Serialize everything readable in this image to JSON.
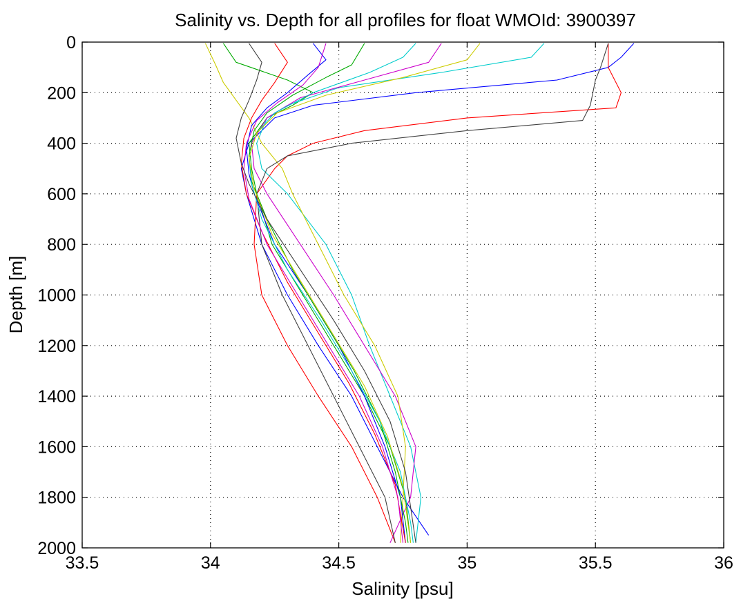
{
  "chart_data": {
    "type": "line",
    "title": "Salinity vs. Depth for all profiles for float WMOId: 3900397",
    "xlabel": "Salinity [psu]",
    "ylabel": "Depth [m]",
    "xlim": [
      33.5,
      36
    ],
    "ylim": [
      0,
      2000
    ],
    "y_reversed": true,
    "grid": true,
    "x_ticks": [
      33.5,
      34,
      34.5,
      35,
      35.5,
      36
    ],
    "x_tick_labels": [
      "33.5",
      "34",
      "34.5",
      "35",
      "35.5",
      "36"
    ],
    "y_ticks": [
      0,
      200,
      400,
      600,
      800,
      1000,
      1200,
      1400,
      1600,
      1800,
      2000
    ],
    "y_tick_labels": [
      "0",
      "200",
      "400",
      "600",
      "800",
      "1000",
      "1200",
      "1400",
      "1600",
      "1800",
      "2000"
    ],
    "series_colors": [
      "#0000ff",
      "#00aa00",
      "#ff0000",
      "#00cccc",
      "#cc00cc",
      "#cccc00",
      "#404040"
    ],
    "series": [
      {
        "depth": [
          5,
          60,
          100,
          150,
          200,
          250,
          300,
          400,
          500,
          600,
          800,
          1000,
          1200,
          1400,
          1600,
          1800,
          1950
        ],
        "salinity": [
          35.65,
          35.6,
          35.55,
          35.35,
          34.8,
          34.4,
          34.25,
          34.15,
          34.12,
          34.14,
          34.2,
          34.3,
          34.42,
          34.55,
          34.65,
          34.75,
          34.85
        ]
      },
      {
        "depth": [
          5,
          80,
          150,
          200,
          250,
          300,
          400,
          500,
          600,
          800,
          1000,
          1200,
          1400,
          1600,
          1800,
          1980
        ],
        "salinity": [
          34.05,
          34.1,
          34.3,
          34.4,
          34.32,
          34.22,
          34.15,
          34.16,
          34.18,
          34.24,
          34.36,
          34.48,
          34.6,
          34.7,
          34.76,
          34.78
        ]
      },
      {
        "depth": [
          5,
          100,
          200,
          260,
          300,
          350,
          400,
          450,
          500,
          600,
          800,
          1000,
          1200,
          1400,
          1600,
          1800,
          1980
        ],
        "salinity": [
          35.55,
          35.55,
          35.6,
          35.58,
          35.0,
          34.6,
          34.4,
          34.3,
          34.25,
          34.18,
          34.17,
          34.2,
          34.3,
          34.42,
          34.55,
          34.65,
          34.72
        ]
      },
      {
        "depth": [
          5,
          60,
          120,
          180,
          250,
          300,
          400,
          500,
          600,
          800,
          1000,
          1200,
          1400,
          1600,
          1800,
          1980
        ],
        "salinity": [
          35.3,
          35.25,
          34.9,
          34.5,
          34.3,
          34.22,
          34.18,
          34.2,
          34.3,
          34.45,
          34.55,
          34.62,
          34.7,
          34.78,
          34.82,
          34.8
        ]
      },
      {
        "depth": [
          5,
          80,
          150,
          220,
          300,
          400,
          500,
          600,
          800,
          1000,
          1200,
          1400,
          1600,
          1800,
          1980
        ],
        "salinity": [
          34.9,
          34.85,
          34.6,
          34.35,
          34.22,
          34.16,
          34.17,
          34.22,
          34.35,
          34.48,
          34.6,
          34.72,
          34.8,
          34.78,
          34.7
        ]
      },
      {
        "depth": [
          5,
          90,
          160,
          230,
          300,
          400,
          500,
          600,
          800,
          1000,
          1200,
          1400,
          1600,
          1800,
          1980
        ],
        "salinity": [
          33.98,
          34.02,
          34.05,
          34.1,
          34.15,
          34.2,
          34.28,
          34.32,
          34.42,
          34.52,
          34.64,
          34.73,
          34.76,
          34.75,
          34.74
        ]
      },
      {
        "depth": [
          5,
          100,
          150,
          250,
          310,
          350,
          400,
          450,
          500,
          600,
          800,
          1000,
          1200,
          1400,
          1600,
          1800,
          1980
        ],
        "salinity": [
          35.55,
          35.52,
          35.5,
          35.48,
          35.45,
          35.0,
          34.55,
          34.3,
          34.22,
          34.18,
          34.2,
          34.28,
          34.38,
          34.48,
          34.58,
          34.68,
          34.72
        ]
      },
      {
        "depth": [
          5,
          70,
          130,
          200,
          260,
          330,
          420,
          520,
          600,
          800,
          1000,
          1200,
          1400,
          1600,
          1800,
          1980
        ],
        "salinity": [
          34.4,
          34.45,
          34.38,
          34.3,
          34.22,
          34.16,
          34.14,
          34.15,
          34.17,
          34.25,
          34.38,
          34.5,
          34.6,
          34.68,
          34.74,
          34.76
        ]
      },
      {
        "depth": [
          5,
          90,
          140,
          210,
          280,
          350,
          450,
          550,
          700,
          900,
          1100,
          1300,
          1500,
          1700,
          1900,
          1980
        ],
        "salinity": [
          34.6,
          34.55,
          34.45,
          34.32,
          34.22,
          34.17,
          34.15,
          34.16,
          34.22,
          34.32,
          34.44,
          34.56,
          34.66,
          34.72,
          34.76,
          34.77
        ]
      },
      {
        "depth": [
          5,
          80,
          160,
          230,
          300,
          380,
          480,
          600,
          750,
          950,
          1150,
          1350,
          1550,
          1750,
          1980
        ],
        "salinity": [
          34.25,
          34.3,
          34.25,
          34.2,
          34.16,
          34.13,
          34.12,
          34.14,
          34.2,
          34.3,
          34.42,
          34.54,
          34.64,
          34.72,
          34.76
        ]
      },
      {
        "depth": [
          5,
          60,
          120,
          200,
          280,
          360,
          460,
          560,
          700,
          900,
          1100,
          1300,
          1500,
          1700,
          1900,
          1980
        ],
        "salinity": [
          34.8,
          34.75,
          34.62,
          34.4,
          34.25,
          34.18,
          34.15,
          34.16,
          34.2,
          34.3,
          34.43,
          34.55,
          34.66,
          34.74,
          34.78,
          34.79
        ]
      },
      {
        "depth": [
          5,
          100,
          170,
          240,
          310,
          400,
          500,
          620,
          800,
          1000,
          1200,
          1400,
          1600,
          1800,
          1980
        ],
        "salinity": [
          34.45,
          34.42,
          34.36,
          34.26,
          34.18,
          34.14,
          34.13,
          34.15,
          34.22,
          34.34,
          34.46,
          34.58,
          34.67,
          34.73,
          34.75
        ]
      },
      {
        "depth": [
          5,
          70,
          140,
          210,
          280,
          360,
          460,
          580,
          760,
          960,
          1160,
          1360,
          1560,
          1760,
          1980
        ],
        "salinity": [
          35.05,
          35.0,
          34.75,
          34.45,
          34.26,
          34.18,
          34.15,
          34.17,
          34.24,
          34.36,
          34.48,
          34.6,
          34.69,
          34.75,
          34.78
        ]
      },
      {
        "depth": [
          5,
          80,
          150,
          230,
          300,
          380,
          480,
          560,
          700,
          900,
          1100,
          1300,
          1500,
          1700,
          1980
        ],
        "salinity": [
          34.15,
          34.2,
          34.18,
          34.15,
          34.12,
          34.1,
          34.12,
          34.15,
          34.22,
          34.35,
          34.48,
          34.6,
          34.7,
          34.76,
          34.8
        ]
      }
    ]
  }
}
